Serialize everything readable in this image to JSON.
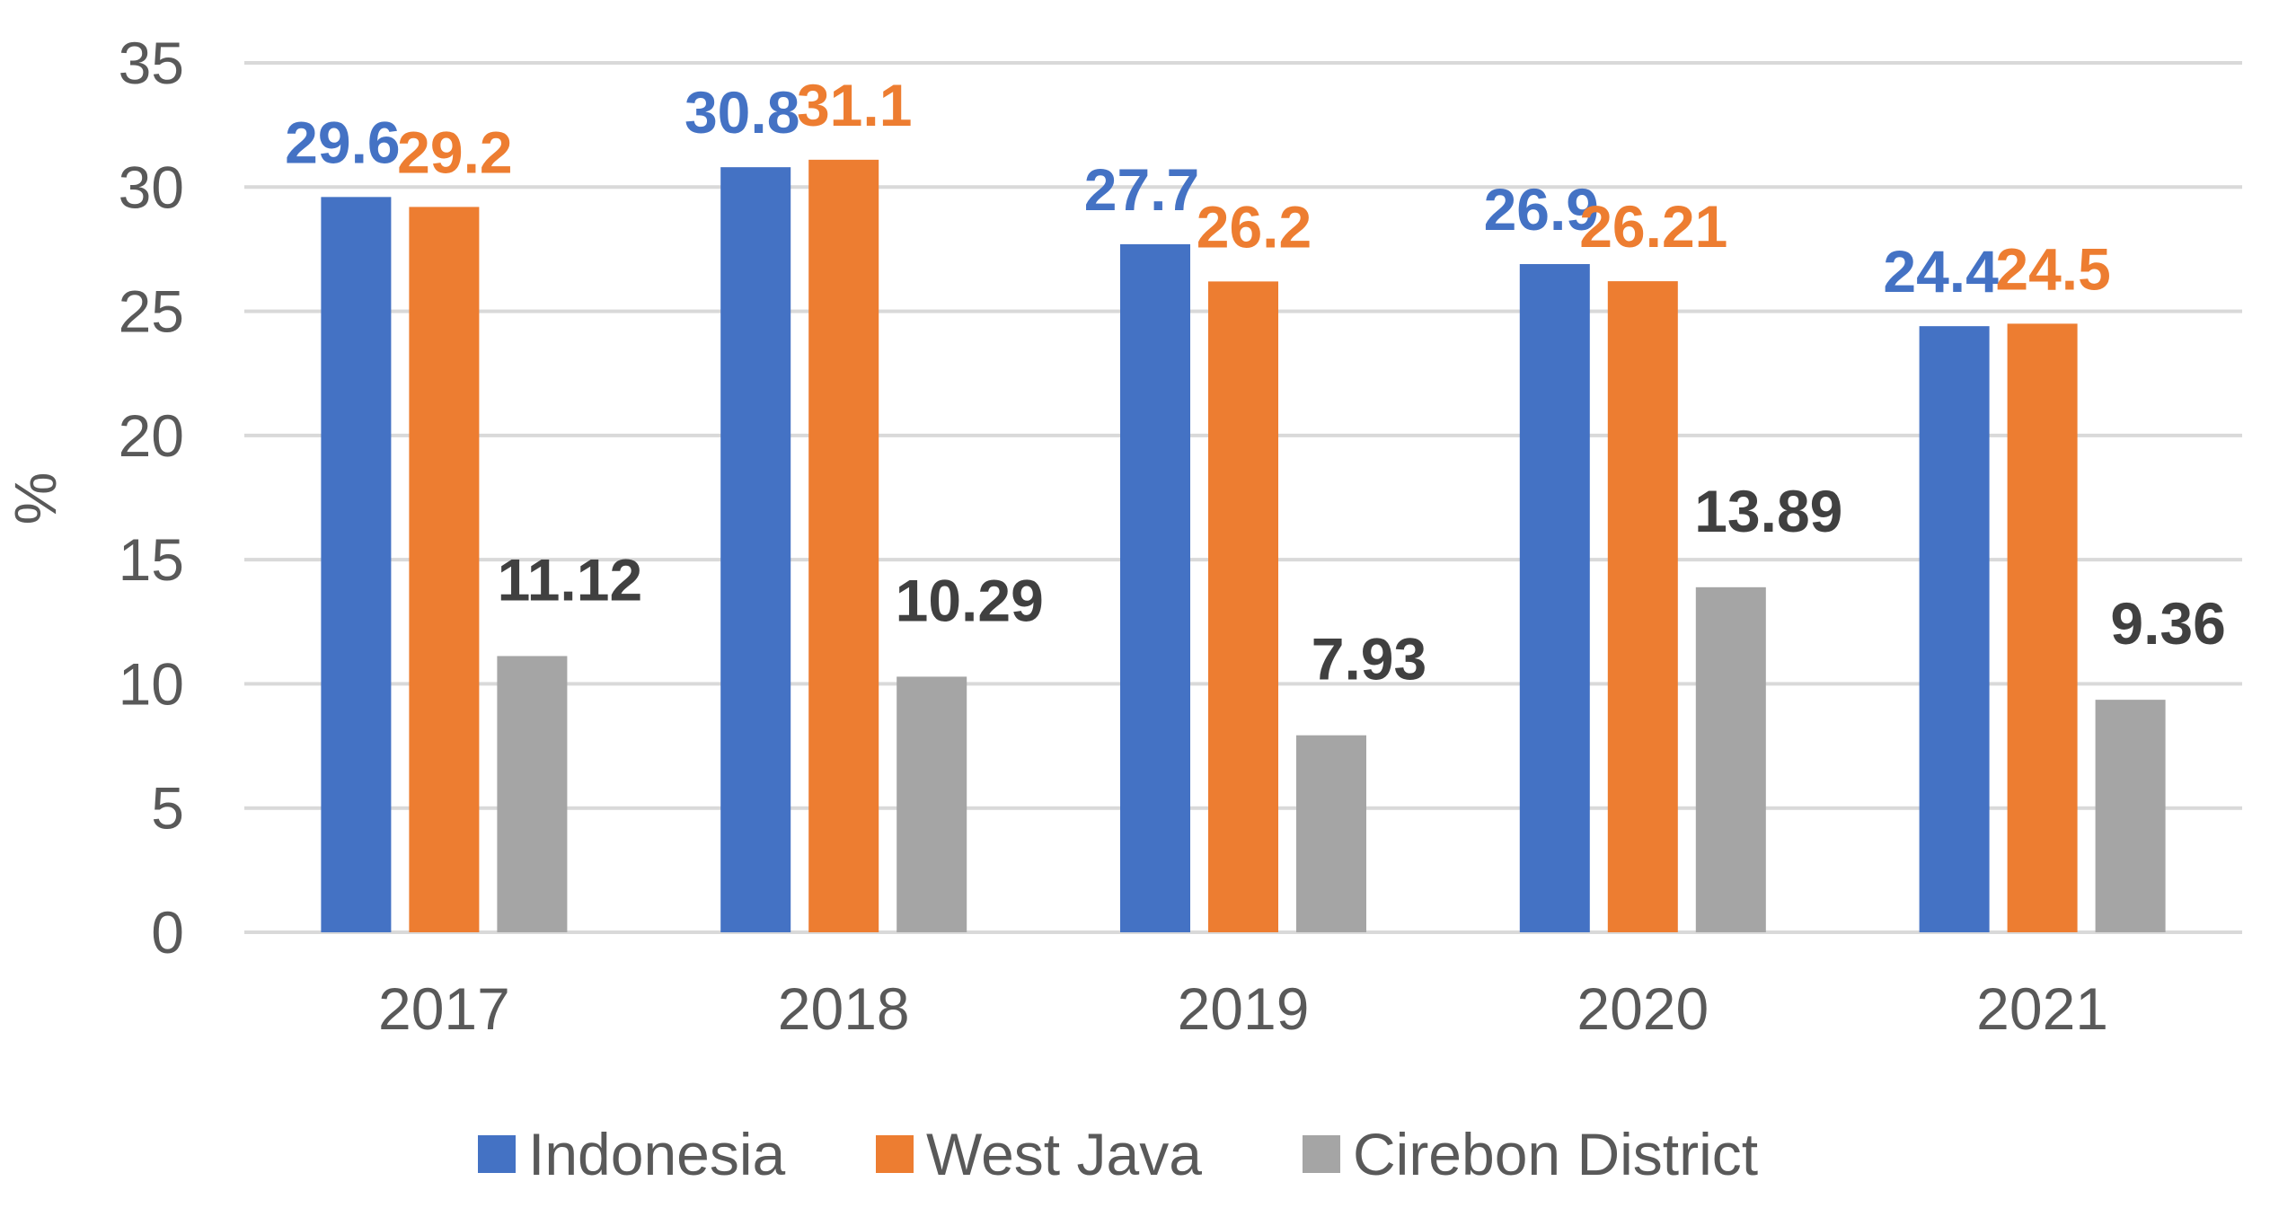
{
  "chart_data": {
    "type": "bar",
    "title": "",
    "xlabel": "",
    "ylabel": "%",
    "ylim": [
      0,
      35
    ],
    "yticks": [
      0,
      5,
      10,
      15,
      20,
      25,
      30,
      35
    ],
    "grid": true,
    "legend_position": "bottom-center",
    "categories": [
      "2017",
      "2018",
      "2019",
      "2020",
      "2021"
    ],
    "series": [
      {
        "name": "Indonesia",
        "color": "#4472c4",
        "values": [
          29.6,
          30.8,
          27.7,
          26.9,
          24.4
        ],
        "labels": [
          "29.6",
          "30.8",
          "27.7",
          "26.9",
          "24.4"
        ]
      },
      {
        "name": "West Java",
        "color": "#ed7d31",
        "values": [
          29.2,
          31.1,
          26.2,
          26.21,
          24.5
        ],
        "labels": [
          "29.2",
          "31.1",
          "26.2",
          "26.21",
          "24.5"
        ]
      },
      {
        "name": "Cirebon District",
        "color": "#a5a5a5",
        "values": [
          11.12,
          10.29,
          7.93,
          13.89,
          9.36
        ],
        "labels": [
          "11.12",
          "10.29",
          "7.93",
          "13.89",
          "9.36"
        ]
      }
    ],
    "label_color_override": {
      "Cirebon District": "#404040"
    }
  }
}
